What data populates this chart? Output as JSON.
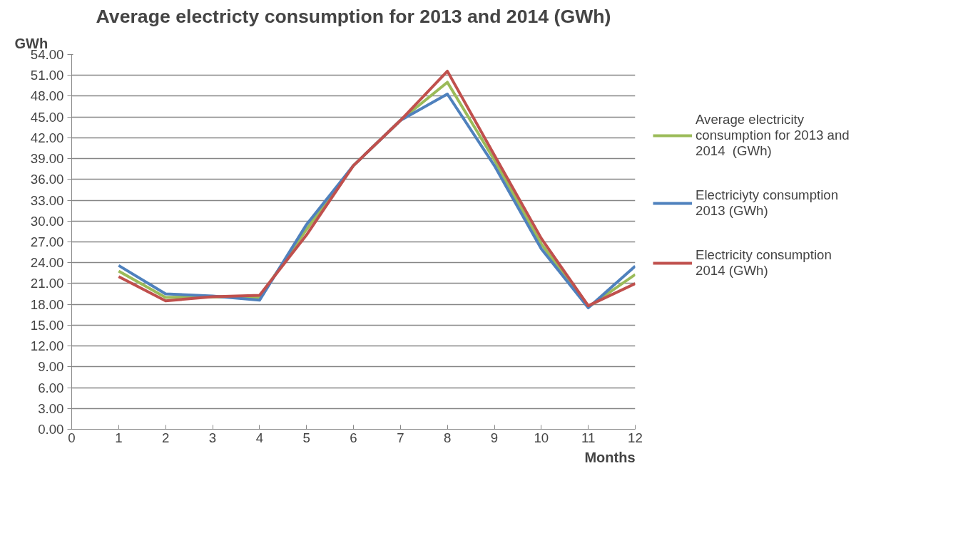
{
  "chart_data": {
    "type": "line",
    "title": "Average electricty consumption for 2013 and 2014 (GWh)",
    "ylabel": "GWh",
    "xlabel": "Months",
    "x": [
      1,
      2,
      3,
      4,
      5,
      6,
      7,
      8,
      9,
      10,
      11,
      12
    ],
    "series": [
      {
        "name": "Average electricity consumption for 2013 and 2014  (GWh)",
        "color": "#9bbb59",
        "values": [
          22.8,
          19.0,
          19.1,
          19.0,
          28.8,
          38.0,
          44.5,
          50.0,
          38.8,
          26.7,
          17.6,
          22.3
        ]
      },
      {
        "name": "Electriciyty consumption 2013 (GWh)",
        "color": "#4f81bd",
        "values": [
          23.6,
          19.5,
          19.2,
          18.6,
          29.5,
          38.0,
          44.5,
          48.3,
          38.0,
          26.0,
          17.5,
          23.5
        ]
      },
      {
        "name": "Electricity consumption 2014 (GWh)",
        "color": "#c0504d",
        "values": [
          22.0,
          18.5,
          19.1,
          19.3,
          28.0,
          38.0,
          44.5,
          51.6,
          39.5,
          27.5,
          17.8,
          21.0
        ]
      }
    ],
    "xlim": [
      0,
      12
    ],
    "xticks": [
      0,
      1,
      2,
      3,
      4,
      5,
      6,
      7,
      8,
      9,
      10,
      11,
      12
    ],
    "ylim": [
      0,
      54
    ],
    "yticks": [
      {
        "value": 0,
        "label": "0.00"
      },
      {
        "value": 3,
        "label": "3.00"
      },
      {
        "value": 6,
        "label": "6.00"
      },
      {
        "value": 9,
        "label": "9.00"
      },
      {
        "value": 12,
        "label": "12.00"
      },
      {
        "value": 15,
        "label": "15.00"
      },
      {
        "value": 18,
        "label": "18.00"
      },
      {
        "value": 21,
        "label": "21.00"
      },
      {
        "value": 24,
        "label": "24.00"
      },
      {
        "value": 27,
        "label": "27.00"
      },
      {
        "value": 30,
        "label": "30.00"
      },
      {
        "value": 33,
        "label": "33.00"
      },
      {
        "value": 36,
        "label": "36.00"
      },
      {
        "value": 39,
        "label": "39.00"
      },
      {
        "value": 42,
        "label": "42.00"
      },
      {
        "value": 45,
        "label": "45.00"
      },
      {
        "value": 48,
        "label": "48.00"
      },
      {
        "value": 51,
        "label": "51.00"
      },
      {
        "value": 54,
        "label": "54.00"
      }
    ],
    "grid": "y",
    "legend": "right",
    "marker": "none",
    "line_style": "solid"
  }
}
